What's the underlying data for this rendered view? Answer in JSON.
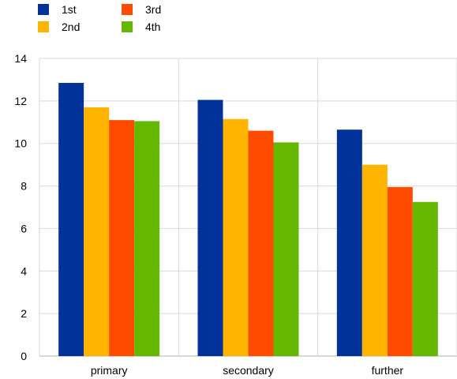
{
  "chart_data": {
    "type": "bar",
    "categories": [
      "primary",
      "secondary",
      "further"
    ],
    "series": [
      {
        "name": "1st",
        "color": "#003299",
        "values": [
          12.85,
          12.05,
          10.65
        ]
      },
      {
        "name": "2nd",
        "color": "#FFB400",
        "values": [
          11.7,
          11.15,
          9.0
        ]
      },
      {
        "name": "3rd",
        "color": "#FF4B00",
        "values": [
          11.1,
          10.6,
          7.95
        ]
      },
      {
        "name": "4th",
        "color": "#65B800",
        "values": [
          11.05,
          10.05,
          7.25
        ]
      }
    ],
    "ylim": [
      0,
      14
    ],
    "yticks": [
      0,
      2,
      4,
      6,
      8,
      10,
      12,
      14
    ],
    "grid": true,
    "legend_position": "top-left"
  }
}
